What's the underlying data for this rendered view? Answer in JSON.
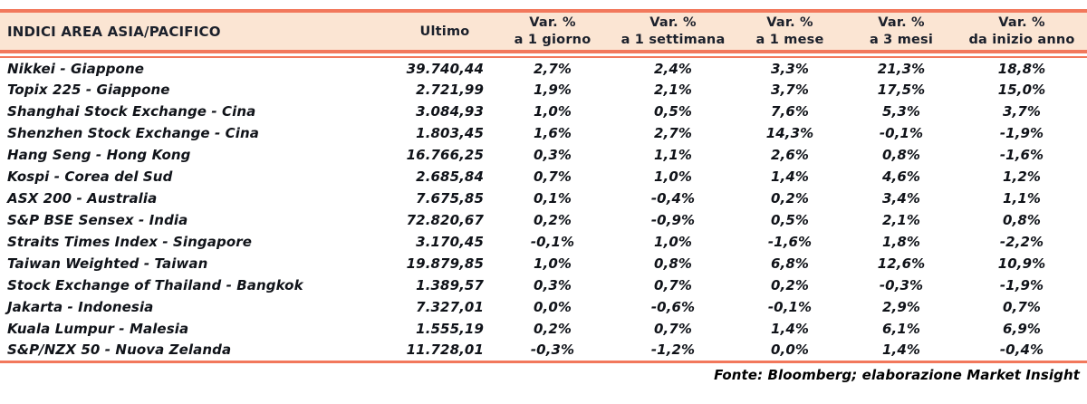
{
  "title": "INDICI AREA ASIA/PACIFICO",
  "header": {
    "ultimo": "Ultimo",
    "var_columns": [
      {
        "top": "Var. %",
        "bottom": "a 1 giorno"
      },
      {
        "top": "Var. %",
        "bottom": "a 1 settimana"
      },
      {
        "top": "Var. %",
        "bottom": "a 1 mese"
      },
      {
        "top": "Var. %",
        "bottom": "a 3 mesi"
      },
      {
        "top": "Var. %",
        "bottom": "da inizio anno"
      }
    ]
  },
  "rows": [
    {
      "name": "Nikkei - Giappone",
      "ultimo": "39.740,44",
      "vars": [
        "2,7%",
        "2,4%",
        "3,3%",
        "21,3%",
        "18,8%"
      ]
    },
    {
      "name": "Topix 225 - Giappone",
      "ultimo": "2.721,99",
      "vars": [
        "1,9%",
        "2,1%",
        "3,7%",
        "17,5%",
        "15,0%"
      ]
    },
    {
      "name": "Shanghai Stock Exchange - Cina",
      "ultimo": "3.084,93",
      "vars": [
        "1,0%",
        "0,5%",
        "7,6%",
        "5,3%",
        "3,7%"
      ]
    },
    {
      "name": "Shenzhen Stock Exchange - Cina",
      "ultimo": "1.803,45",
      "vars": [
        "1,6%",
        "2,7%",
        "14,3%",
        "-0,1%",
        "-1,9%"
      ]
    },
    {
      "name": "Hang Seng - Hong Kong",
      "ultimo": "16.766,25",
      "vars": [
        "0,3%",
        "1,1%",
        "2,6%",
        "0,8%",
        "-1,6%"
      ]
    },
    {
      "name": "Kospi - Corea del Sud",
      "ultimo": "2.685,84",
      "vars": [
        "0,7%",
        "1,0%",
        "1,4%",
        "4,6%",
        "1,2%"
      ]
    },
    {
      "name": "ASX 200 - Australia",
      "ultimo": "7.675,85",
      "vars": [
        "0,1%",
        "-0,4%",
        "0,2%",
        "3,4%",
        "1,1%"
      ]
    },
    {
      "name": "S&P BSE Sensex - India",
      "ultimo": "72.820,67",
      "vars": [
        "0,2%",
        "-0,9%",
        "0,5%",
        "2,1%",
        "0,8%"
      ]
    },
    {
      "name": "Straits Times Index - Singapore",
      "ultimo": "3.170,45",
      "vars": [
        "-0,1%",
        "1,0%",
        "-1,6%",
        "1,8%",
        "-2,2%"
      ]
    },
    {
      "name": "Taiwan Weighted - Taiwan",
      "ultimo": "19.879,85",
      "vars": [
        "1,0%",
        "0,8%",
        "6,8%",
        "12,6%",
        "10,9%"
      ]
    },
    {
      "name": "Stock Exchange of Thailand - Bangkok",
      "ultimo": "1.389,57",
      "vars": [
        "0,3%",
        "0,7%",
        "0,2%",
        "-0,3%",
        "-1,9%"
      ]
    },
    {
      "name": "Jakarta - Indonesia",
      "ultimo": "7.327,01",
      "vars": [
        "0,0%",
        "-0,6%",
        "-0,1%",
        "2,9%",
        "0,7%"
      ]
    },
    {
      "name": "Kuala Lumpur - Malesia",
      "ultimo": "1.555,19",
      "vars": [
        "0,2%",
        "0,7%",
        "1,4%",
        "6,1%",
        "6,9%"
      ]
    },
    {
      "name": "S&P/NZX 50 - Nuova Zelanda",
      "ultimo": "11.728,01",
      "vars": [
        "-0,3%",
        "-1,2%",
        "0,0%",
        "1,4%",
        "-0,4%"
      ]
    }
  ],
  "footer": {
    "text": "Fonte: Bloomberg; elaborazione Market Insight"
  },
  "colors": {
    "accent_line": "#F2785C",
    "header_background": "#FBE5D3",
    "header_text": "#1B202B",
    "body_text": "#101319"
  }
}
